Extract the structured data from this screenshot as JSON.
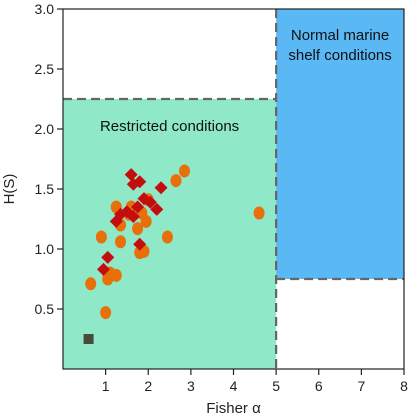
{
  "chart_data": {
    "type": "scatter",
    "xlabel": "Fisher α",
    "ylabel": "H(S)",
    "xlim": [
      0,
      8
    ],
    "ylim": [
      0,
      3.0
    ],
    "x_ticks": [
      1,
      2,
      3,
      4,
      5,
      6,
      7,
      8
    ],
    "y_ticks": [
      0.5,
      1.0,
      1.5,
      2.0,
      2.5,
      3.0
    ],
    "x_tick_labels": [
      "1",
      "2",
      "3",
      "4",
      "5",
      "6",
      "7",
      "8"
    ],
    "y_tick_labels": [
      "0.5",
      "1.0",
      "1.5",
      "2.0",
      "2.5",
      "3.0"
    ],
    "grid": false,
    "regions": [
      {
        "label": [
          "Restricted conditions"
        ],
        "x_range": [
          0,
          5
        ],
        "y_range": [
          0,
          2.25
        ],
        "color": "#8fe8c8"
      },
      {
        "label": [
          "Normal marine",
          "shelf conditions"
        ],
        "x_range": [
          5,
          8
        ],
        "y_range": [
          0.75,
          3.0
        ],
        "color": "#5ab8f5"
      }
    ],
    "series": [
      {
        "marker": "circle",
        "color": "#e8700a",
        "points": [
          [
            0.65,
            0.71
          ],
          [
            0.9,
            1.1
          ],
          [
            1.0,
            0.47
          ],
          [
            1.05,
            0.75
          ],
          [
            1.1,
            0.8
          ],
          [
            1.25,
            0.78
          ],
          [
            1.25,
            1.35
          ],
          [
            1.35,
            1.06
          ],
          [
            1.35,
            1.2
          ],
          [
            1.55,
            1.29
          ],
          [
            1.6,
            1.35
          ],
          [
            1.75,
            1.17
          ],
          [
            1.8,
            0.97
          ],
          [
            1.85,
            1.3
          ],
          [
            1.9,
            0.98
          ],
          [
            1.95,
            1.23
          ],
          [
            2.0,
            1.41
          ],
          [
            2.45,
            1.1
          ],
          [
            2.65,
            1.57
          ],
          [
            2.85,
            1.65
          ],
          [
            4.6,
            1.3
          ]
        ]
      },
      {
        "marker": "diamond",
        "color": "#c40d0d",
        "points": [
          [
            0.95,
            0.83
          ],
          [
            1.05,
            0.93
          ],
          [
            1.25,
            1.23
          ],
          [
            1.35,
            1.29
          ],
          [
            1.5,
            1.31
          ],
          [
            1.6,
            1.62
          ],
          [
            1.65,
            1.54
          ],
          [
            1.65,
            1.27
          ],
          [
            1.75,
            1.35
          ],
          [
            1.8,
            1.56
          ],
          [
            1.8,
            1.04
          ],
          [
            1.9,
            1.42
          ],
          [
            2.05,
            1.39
          ],
          [
            2.2,
            1.33
          ],
          [
            2.3,
            1.51
          ]
        ]
      },
      {
        "marker": "square",
        "color": "#4a4a3a",
        "points": [
          [
            0.6,
            0.25
          ]
        ]
      }
    ]
  }
}
